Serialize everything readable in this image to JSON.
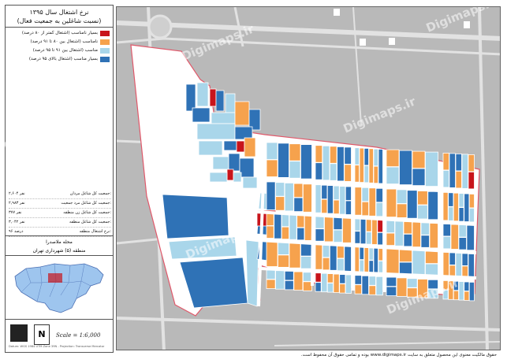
{
  "panel": {
    "title_line1": "نرخ اشتغال سال ۱۳۹۵",
    "title_line2": "(نسبت شاغلین به جمعیت فعال)",
    "legend": [
      {
        "label": "بسیار نامناسب (اشتغال کمتر از ۸۰ درصد)",
        "color": "#c8141b"
      },
      {
        "label": "نامناسب (اشتغال بین ۸۰ تا ۹۱ درصد)",
        "color": "#f6a24d"
      },
      {
        "label": "مناسب (اشتغال بین ۹۱ تا ۹۵ درصد)",
        "color": "#a9d6ea"
      },
      {
        "label": "بسیار مناسب (اشتغال بالای ۹۵ درصد)",
        "color": "#2f72b6"
      }
    ],
    "stats": [
      {
        "key": "جمعیت کل شاغل مردان:",
        "value": "۲,۶۰۴ نفر"
      },
      {
        "key": "جمعیت کل شاغل مرد جمعیت:",
        "value": "۲,۹۸۳ نفر"
      },
      {
        "key": "جمعیت کل شاغل زن منطقه:",
        "value": "۳۷۷ نفر"
      },
      {
        "key": "جمعیت کل شاغل منطقه:",
        "value": "۳,۰۴۲ نفر"
      },
      {
        "key": "نرخ اشتغال منطقه:",
        "value": "۹۶ درصد"
      }
    ],
    "location_line1": "محله ملاصدرا",
    "location_line2": "منطقه (۵) شهرداری تهران",
    "scale": "Scale = 1:6,000",
    "north": "N",
    "copyright": "Datum: WGS 1984 UTM Zone 39N - Projection: Transverse Mercator"
  },
  "footer": "حقوق مالکیت معنوی این محصول متعلق به سایت www.digimaps.ir بوده و تمامی حقوق آن محفوظ است.",
  "watermark": "Digimaps.ir"
}
